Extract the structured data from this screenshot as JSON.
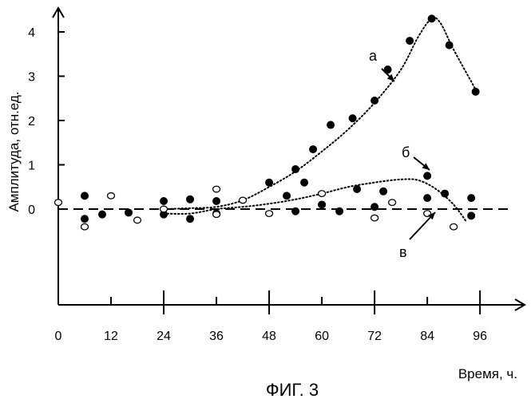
{
  "chart_data": {
    "type": "scatter",
    "caption": "ФИГ. 3",
    "xlabel": "Время, ч.",
    "ylabel": "Амплитуда, отн.ед.",
    "xlim": [
      0,
      97
    ],
    "ylim": [
      0,
      4.4
    ],
    "x_ticks": [
      0,
      12,
      24,
      36,
      48,
      60,
      72,
      84,
      96
    ],
    "y_ticks": [
      0,
      1,
      2,
      3,
      4
    ],
    "x_tick_labels": [
      "0",
      "12",
      "24",
      "36",
      "48",
      "60",
      "72",
      "84",
      "96"
    ],
    "y_tick_labels": [
      "0",
      "1",
      "2",
      "3",
      "4"
    ],
    "baseline_value": 0,
    "series": [
      {
        "label": "а",
        "marker": "filled",
        "points": [
          [
            6,
            0.3
          ],
          [
            6,
            -0.22
          ],
          [
            10,
            -0.12
          ],
          [
            16,
            -0.08
          ],
          [
            24,
            -0.12
          ],
          [
            24,
            0.18
          ],
          [
            30,
            0.22
          ],
          [
            30,
            -0.22
          ],
          [
            36,
            0.18
          ],
          [
            36,
            -0.1
          ],
          [
            48,
            0.6
          ],
          [
            52,
            0.3
          ],
          [
            54,
            0.9
          ],
          [
            56,
            0.6
          ],
          [
            58,
            1.35
          ],
          [
            62,
            1.9
          ],
          [
            67,
            2.05
          ],
          [
            72,
            2.45
          ],
          [
            75,
            3.15
          ],
          [
            80,
            3.8
          ],
          [
            85,
            4.3
          ],
          [
            89,
            3.7
          ],
          [
            95,
            2.65
          ]
        ],
        "curve": [
          [
            24,
            0
          ],
          [
            30,
            0.02
          ],
          [
            36,
            0.05
          ],
          [
            42,
            0.2
          ],
          [
            48,
            0.5
          ],
          [
            54,
            0.85
          ],
          [
            60,
            1.3
          ],
          [
            66,
            1.8
          ],
          [
            72,
            2.4
          ],
          [
            78,
            3.15
          ],
          [
            82,
            3.9
          ],
          [
            85,
            4.3
          ],
          [
            87,
            4.2
          ],
          [
            90,
            3.6
          ],
          [
            95,
            2.7
          ]
        ]
      },
      {
        "label": "б",
        "marker": "filled",
        "points": [
          [
            54,
            -0.05
          ],
          [
            60,
            0.1
          ],
          [
            64,
            -0.05
          ],
          [
            68,
            0.45
          ],
          [
            72,
            0.05
          ],
          [
            74,
            0.4
          ],
          [
            84,
            0.75
          ],
          [
            84,
            0.25
          ],
          [
            88,
            0.35
          ],
          [
            94,
            0.25
          ],
          [
            94,
            -0.15
          ]
        ],
        "curve": [
          [
            24,
            -0.1
          ],
          [
            30,
            -0.1
          ],
          [
            36,
            0
          ],
          [
            42,
            0.05
          ],
          [
            48,
            0.12
          ],
          [
            54,
            0.22
          ],
          [
            60,
            0.35
          ],
          [
            66,
            0.5
          ],
          [
            72,
            0.6
          ],
          [
            78,
            0.67
          ],
          [
            82,
            0.65
          ],
          [
            86,
            0.45
          ],
          [
            90,
            0.1
          ],
          [
            93,
            -0.3
          ]
        ]
      },
      {
        "label": "в",
        "marker": "open",
        "points": [
          [
            0,
            0.15
          ],
          [
            6,
            -0.4
          ],
          [
            12,
            0.3
          ],
          [
            18,
            -0.25
          ],
          [
            24,
            0.0
          ],
          [
            36,
            0.45
          ],
          [
            36,
            -0.12
          ],
          [
            42,
            0.2
          ],
          [
            48,
            -0.1
          ],
          [
            60,
            0.35
          ],
          [
            72,
            -0.2
          ],
          [
            76,
            0.15
          ],
          [
            84,
            -0.1
          ],
          [
            90,
            -0.4
          ]
        ]
      }
    ],
    "annotations": [
      {
        "text": "а",
        "target_series": "а"
      },
      {
        "text": "б",
        "target_series": "б"
      },
      {
        "text": "в",
        "target_series": "в"
      }
    ]
  }
}
